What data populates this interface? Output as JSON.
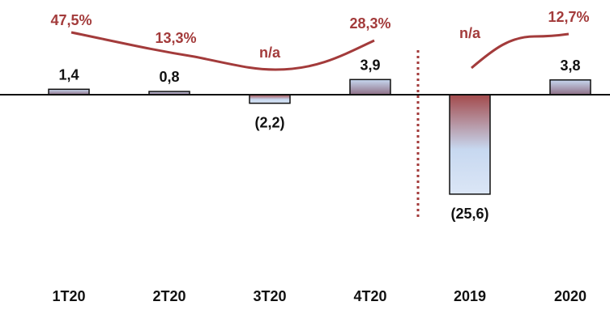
{
  "chart_data": {
    "type": "bar",
    "categories": [
      "1T20",
      "2T20",
      "3T20",
      "4T20",
      "2019",
      "2020"
    ],
    "values": [
      1.4,
      0.8,
      -2.2,
      3.9,
      -25.6,
      3.8
    ],
    "value_labels": [
      "1,4",
      "0,8",
      "(2,2)",
      "3,9",
      "(25,6)",
      "3,8"
    ],
    "margin_labels": [
      "47,5%",
      "13,3%",
      "n/a",
      "28,3%",
      "n/a",
      "12,7%"
    ],
    "margin_values": [
      47.5,
      13.3,
      null,
      28.3,
      null,
      12.7
    ],
    "groups": [
      {
        "categories": [
          "1T20",
          "2T20",
          "3T20",
          "4T20"
        ]
      },
      {
        "categories": [
          "2019",
          "2020"
        ]
      }
    ],
    "title": "",
    "xlabel": "",
    "ylabel": "",
    "grid": false,
    "legend": "none",
    "colors": {
      "bar_top": "#a34a4c",
      "bar_bottom": "#c7d8f0",
      "bar_stroke": "#111111",
      "line": "#a33b3b",
      "pct_text": "#a33b3b",
      "separator": "#a33b3b"
    }
  }
}
